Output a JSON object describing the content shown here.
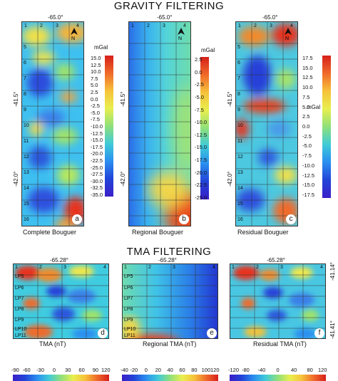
{
  "gravity": {
    "title": "GRAVITY FILTERING",
    "lon_label": "-65.0°",
    "lat_top": "-41.5°",
    "lat_bottom": "-42.0°",
    "north": "N",
    "unit": "mGal",
    "panels": [
      {
        "letter": "a",
        "caption": "Complete Bouguer",
        "ticks": [
          "15.0",
          "12.5",
          "10.0",
          "7.5",
          "5.0",
          "2.5",
          "0.0",
          "-2.5",
          "-5.0",
          "-7.5",
          "-10.0",
          "-12.5",
          "-15.0",
          "-17.5",
          "-20.0",
          "-22.5",
          "-25.0",
          "-27.5",
          "-30.0",
          "-32.5",
          "-35.0"
        ]
      },
      {
        "letter": "b",
        "caption": "Regional Bouguer",
        "ticks": [
          "2.5",
          "0.0",
          "-2.5",
          "-5.0",
          "-7.5",
          "-10.0",
          "-12.5",
          "-15.0",
          "-17.5",
          "-20.0",
          "-22.5",
          "-25.0"
        ]
      },
      {
        "letter": "c",
        "caption": "Residual Bouguer",
        "ticks": [
          "17.5",
          "15.0",
          "12.5",
          "10.0",
          "7.5",
          "5.0",
          "2.5",
          "0.0",
          "-2.5",
          "-5.0",
          "-7.5",
          "-10.0",
          "-12.5",
          "-15.0",
          "-17.5"
        ]
      }
    ],
    "rows": [
      "5",
      "6",
      "7",
      "8",
      "9",
      "10",
      "11",
      "12",
      "13",
      "14",
      "15",
      "16"
    ],
    "cols": [
      "1",
      "2",
      "3",
      "4"
    ]
  },
  "tma": {
    "title": "TMA FILTERING",
    "lon_label": "-65.28°",
    "lat_top": "-41.14°",
    "lat_bottom": "-41.41°",
    "rows": [
      "LP5",
      "LP6",
      "LP7",
      "LP8",
      "LP9",
      "LP10",
      "LP11"
    ],
    "cols": [
      "1",
      "2",
      "3",
      "4"
    ],
    "panels": [
      {
        "letter": "d",
        "caption": "TMA (nT)",
        "ticks": [
          "-90",
          "-60",
          "-30",
          "0",
          "30",
          "60",
          "90",
          "120"
        ]
      },
      {
        "letter": "e",
        "caption": "Regional TMA (nT)",
        "ticks": [
          "-40",
          "-20",
          "0",
          "20",
          "40",
          "60",
          "80",
          "100",
          "120"
        ]
      },
      {
        "letter": "f",
        "caption": "Residual TMA (nT)",
        "ticks": [
          "-120",
          "-80",
          "-40",
          "0",
          "40",
          "80",
          "120"
        ]
      }
    ]
  },
  "colors": {
    "low": "#1a2fd6",
    "mid_low": "#1fa8f0",
    "mid": "#6fdc9a",
    "mid_high": "#f2e84a",
    "high": "#e8231a"
  }
}
